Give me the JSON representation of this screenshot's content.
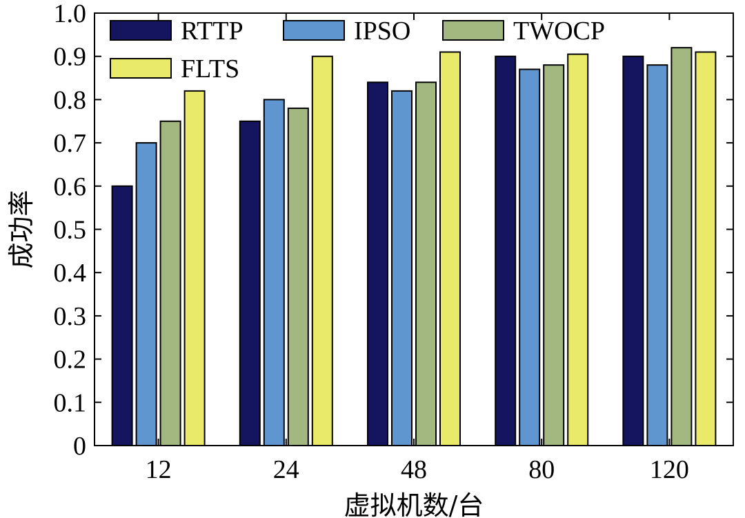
{
  "chart_data": {
    "type": "bar",
    "title": "",
    "xlabel": "虚拟机数/台",
    "ylabel": "成功率",
    "categories": [
      "12",
      "24",
      "48",
      "80",
      "120"
    ],
    "ylim": [
      0,
      1.0
    ],
    "yticks": [
      "0",
      "0.1",
      "0.2",
      "0.3",
      "0.4",
      "0.5",
      "0.6",
      "0.7",
      "0.8",
      "0.9",
      "1.0"
    ],
    "grid": false,
    "legend_position": "top-left",
    "series": [
      {
        "name": "RTTP",
        "color": "#15145e",
        "values": [
          0.6,
          0.75,
          0.84,
          0.9,
          0.9
        ]
      },
      {
        "name": "IPSO",
        "color": "#6096cf",
        "values": [
          0.7,
          0.8,
          0.82,
          0.87,
          0.88
        ]
      },
      {
        "name": "TWOCP",
        "color": "#a3b880",
        "values": [
          0.75,
          0.78,
          0.84,
          0.88,
          0.92
        ]
      },
      {
        "name": "FLTS",
        "color": "#eaea6a",
        "values": [
          0.82,
          0.9,
          0.91,
          0.905,
          0.91
        ]
      }
    ]
  }
}
